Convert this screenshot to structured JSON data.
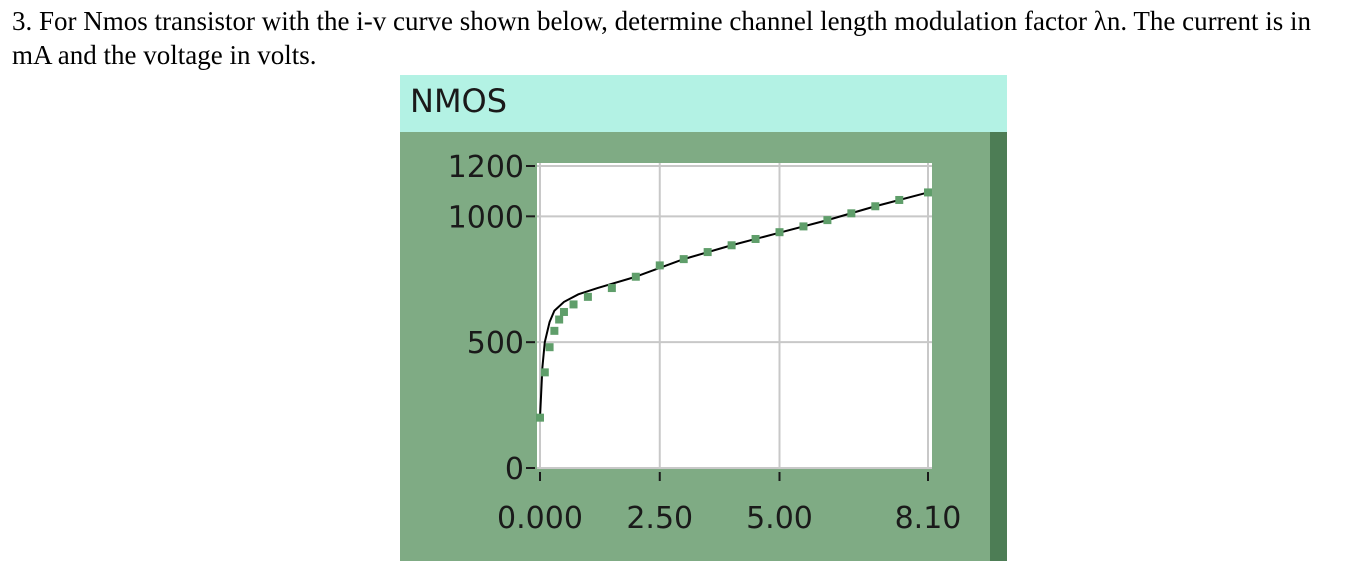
{
  "question": "3.  For Nmos transistor with the i-v curve shown below, determine channel length modulation factor λn. The current is in mA and the voltage in volts.",
  "chart_data": {
    "type": "line",
    "title": "NMOS",
    "xlim": [
      0,
      8.1
    ],
    "ylim": [
      0,
      1200
    ],
    "xticks": [
      {
        "value": 0,
        "label": "0.000"
      },
      {
        "value": 2.5,
        "label": "2.50"
      },
      {
        "value": 5,
        "label": "5.00"
      },
      {
        "value": 8.1,
        "label": "8.10"
      }
    ],
    "yticks": [
      0,
      500,
      1000,
      1200
    ],
    "grid": true,
    "series": [
      {
        "color": "#000000",
        "marker": "none",
        "x": [
          0,
          0.05,
          0.1,
          0.2,
          0.3,
          0.5,
          0.8,
          1.2,
          2,
          3,
          4,
          5,
          6,
          7,
          8.1
        ],
        "values": [
          200,
          400,
          500,
          580,
          625,
          660,
          690,
          715,
          760,
          830,
          885,
          935,
          985,
          1040,
          1095
        ]
      },
      {
        "color": "#5f9e6a",
        "marker": "square",
        "x": [
          0,
          0.1,
          0.2,
          0.3,
          0.4,
          0.5,
          0.7,
          1,
          1.5,
          2,
          2.5,
          3,
          3.5,
          4,
          4.5,
          5,
          5.5,
          6,
          6.5,
          7,
          7.5,
          8.1
        ],
        "values": [
          200,
          380,
          480,
          545,
          590,
          620,
          650,
          680,
          715,
          760,
          805,
          830,
          858,
          885,
          910,
          937,
          960,
          985,
          1012,
          1040,
          1065,
          1095
        ]
      }
    ]
  }
}
